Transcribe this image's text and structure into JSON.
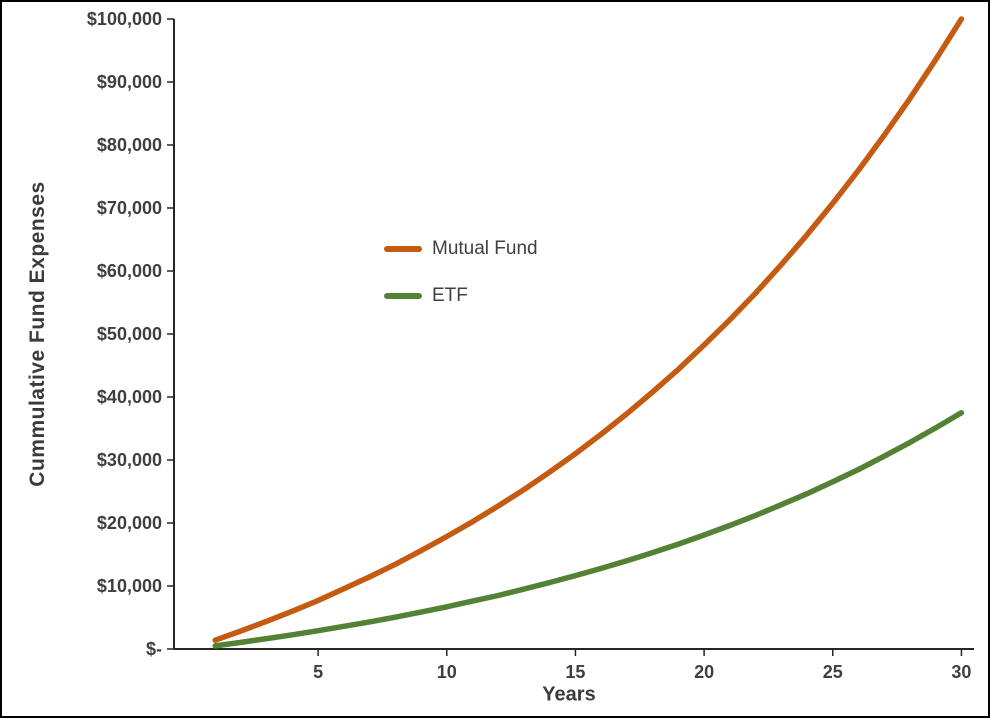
{
  "chart_data": {
    "type": "line",
    "title": "",
    "xlabel": "Years",
    "ylabel": "Cummulative Fund Expenses",
    "x": [
      1,
      2,
      3,
      4,
      5,
      6,
      7,
      8,
      9,
      10,
      11,
      12,
      13,
      14,
      15,
      16,
      17,
      18,
      19,
      20,
      21,
      22,
      23,
      24,
      25,
      26,
      27,
      28,
      29,
      30
    ],
    "series": [
      {
        "name": "Mutual Fund",
        "color": "#C55A11",
        "values": [
          1400,
          2850,
          4400,
          6000,
          7700,
          9550,
          11450,
          13450,
          15600,
          17850,
          20200,
          22700,
          25300,
          28100,
          31000,
          34100,
          37350,
          40800,
          44400,
          48250,
          52250,
          56500,
          61000,
          65750,
          70750,
          76000,
          81550,
          87400,
          93550,
          100000
        ]
      },
      {
        "name": "ETF",
        "color": "#548235",
        "values": [
          500,
          1050,
          1650,
          2250,
          2900,
          3600,
          4300,
          5050,
          5850,
          6700,
          7600,
          8500,
          9500,
          10550,
          11650,
          12800,
          14000,
          15300,
          16650,
          18100,
          19600,
          21200,
          22900,
          24650,
          26550,
          28500,
          30600,
          32800,
          35100,
          37500
        ]
      }
    ],
    "x_tick_values": [
      5,
      10,
      15,
      20,
      25,
      30
    ],
    "x_tick_labels": [
      "5",
      "10",
      "15",
      "20",
      "25",
      "30"
    ],
    "y_tick_values": [
      0,
      10000,
      20000,
      30000,
      40000,
      50000,
      60000,
      70000,
      80000,
      90000,
      100000
    ],
    "y_tick_labels": [
      "$-",
      "$10,000",
      "$20,000",
      "$30,000",
      "$40,000",
      "$50,000",
      "$60,000",
      "$70,000",
      "$80,000",
      "$90,000",
      "$100,000"
    ],
    "xlim": [
      0,
      30
    ],
    "ylim": [
      0,
      100000
    ],
    "grid": false,
    "legend_position": "inside-left-center",
    "axis_color": "#262626",
    "text_color": "#3f3f3f"
  }
}
